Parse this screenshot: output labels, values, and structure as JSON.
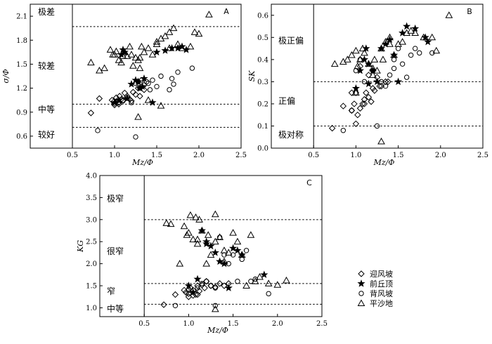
{
  "chart_data": [
    {
      "type": "scatter",
      "panel_label": "A",
      "xlabel": "Mz/Φ",
      "ylabel": "σ/Φ",
      "xlim": [
        0,
        2.5
      ],
      "ylim": [
        0.45,
        2.25
      ],
      "xticks": [
        "0.5",
        "1.0",
        "1.5",
        "2.0",
        "2.5"
      ],
      "yticks": [
        "0.6",
        "0.9",
        "1.2",
        "1.5",
        "1.8",
        "2.1"
      ],
      "vline_x": 0.5,
      "hlines": [
        1.97,
        1.0,
        0.71
      ],
      "zones": [
        "极差",
        "较差",
        "中等",
        "较好"
      ],
      "series": [
        {
          "name": "迎风坡",
          "marker": "diamond",
          "x": [
            0.72,
            0.82,
            0.97,
            0.99,
            1.0,
            1.02,
            1.04,
            1.05,
            1.06,
            1.08,
            1.1,
            1.12,
            1.15,
            1.18,
            1.2,
            1.22,
            1.25,
            1.28,
            1.3,
            1.32,
            1.35,
            1.0,
            1.05,
            1.15
          ],
          "y": [
            0.89,
            1.07,
            1.05,
            1.03,
            1.01,
            1.08,
            1.05,
            1.0,
            1.1,
            1.06,
            1.05,
            1.14,
            1.1,
            1.06,
            1.04,
            1.15,
            1.12,
            1.2,
            1.1,
            1.22,
            1.18,
            0.99,
            1.02,
            1.08
          ]
        },
        {
          "name": "前丘顶",
          "marker": "star",
          "x": [
            1.0,
            1.05,
            1.08,
            1.12,
            1.2,
            1.25,
            1.28,
            1.3,
            1.35,
            1.45,
            1.6,
            1.68,
            1.75,
            1.8,
            1.85,
            1.1,
            1.15,
            1.5,
            1.33
          ],
          "y": [
            1.02,
            1.05,
            1.62,
            1.65,
            1.25,
            1.3,
            1.28,
            1.2,
            1.32,
            1.02,
            1.67,
            1.7,
            1.7,
            1.72,
            1.68,
            1.68,
            1.07,
            1.65,
            1.22
          ]
        },
        {
          "name": "背风坡",
          "marker": "circle",
          "x": [
            0.8,
            1.1,
            1.2,
            1.25,
            1.28,
            1.3,
            1.32,
            1.35,
            1.38,
            1.4,
            1.42,
            1.45,
            1.5,
            1.55,
            1.65,
            1.7,
            1.75,
            1.92,
            1.68,
            1.25
          ],
          "y": [
            0.67,
            1.04,
            1.02,
            1.26,
            1.28,
            1.2,
            1.3,
            1.24,
            1.28,
            1.26,
            1.18,
            1.3,
            1.22,
            1.35,
            1.18,
            1.25,
            1.4,
            1.45,
            1.32,
            0.59
          ]
        },
        {
          "name": "平沙地",
          "marker": "triangle",
          "x": [
            0.72,
            0.82,
            0.88,
            0.95,
            0.98,
            1.0,
            1.02,
            1.05,
            1.08,
            1.1,
            1.12,
            1.15,
            1.18,
            1.2,
            1.22,
            1.25,
            1.28,
            1.3,
            1.32,
            1.35,
            1.4,
            1.45,
            1.5,
            1.55,
            1.6,
            1.65,
            1.7,
            1.75,
            1.8,
            1.9,
            1.95,
            2.0,
            2.12,
            1.3,
            1.4,
            1.55,
            1.28,
            1.5,
            1.65
          ],
          "y": [
            1.52,
            1.42,
            1.45,
            1.68,
            1.62,
            1.62,
            1.66,
            1.55,
            1.52,
            1.6,
            1.65,
            1.6,
            1.72,
            1.62,
            1.48,
            1.58,
            1.55,
            1.45,
            1.72,
            1.65,
            1.7,
            1.62,
            1.75,
            1.82,
            1.85,
            1.9,
            1.95,
            1.75,
            1.7,
            1.72,
            1.9,
            1.88,
            2.12,
            1.58,
            1.05,
            0.98,
            0.84,
            1.78,
            1.7
          ]
        }
      ]
    },
    {
      "type": "scatter",
      "panel_label": "B",
      "xlabel": "Mz/Φ",
      "ylabel": "SK",
      "xlim": [
        0,
        2.5
      ],
      "ylim": [
        0,
        0.65
      ],
      "xticks": [
        "0.5",
        "1.0",
        "1.5",
        "2.0",
        "2.5"
      ],
      "yticks": [
        "0.0",
        "0.1",
        "0.2",
        "0.3",
        "0.4",
        "0.5",
        "0.6"
      ],
      "vline_x": 0.5,
      "hlines": [
        0.3,
        0.1
      ],
      "zones": [
        "极正偏",
        "正偏",
        "极对称"
      ],
      "series": [
        {
          "name": "迎风坡",
          "marker": "diamond",
          "x": [
            0.72,
            0.85,
            0.95,
            0.98,
            1.0,
            1.02,
            1.05,
            1.08,
            1.1,
            1.12,
            1.15,
            1.18,
            1.2,
            1.22,
            1.25,
            1.28,
            1.3,
            1.35,
            1.38,
            1.0,
            1.05,
            1.1,
            1.15,
            0.95
          ],
          "y": [
            0.09,
            0.19,
            0.17,
            0.2,
            0.11,
            0.15,
            0.18,
            0.2,
            0.22,
            0.25,
            0.23,
            0.21,
            0.27,
            0.26,
            0.32,
            0.28,
            0.28,
            0.3,
            0.3,
            0.25,
            0.37,
            0.2,
            0.33,
            0.25
          ]
        },
        {
          "name": "前丘顶",
          "marker": "star",
          "x": [
            1.0,
            1.05,
            1.1,
            1.12,
            1.15,
            1.2,
            1.3,
            1.35,
            1.4,
            1.45,
            1.5,
            1.6,
            1.7,
            1.82,
            1.85,
            1.25,
            1.55,
            1.15
          ],
          "y": [
            0.27,
            0.35,
            0.4,
            0.45,
            0.38,
            0.35,
            0.45,
            0.47,
            0.49,
            0.42,
            0.3,
            0.55,
            0.54,
            0.5,
            0.48,
            0.3,
            0.52,
            0.29
          ]
        },
        {
          "name": "背风坡",
          "marker": "circle",
          "x": [
            0.85,
            0.95,
            1.0,
            1.05,
            1.1,
            1.2,
            1.25,
            1.3,
            1.35,
            1.4,
            1.45,
            1.5,
            1.55,
            1.6,
            1.65,
            1.7,
            1.75,
            1.9,
            1.45
          ],
          "y": [
            0.08,
            0.17,
            0.35,
            0.4,
            0.3,
            0.35,
            0.1,
            0.3,
            0.28,
            0.33,
            0.4,
            0.45,
            0.38,
            0.32,
            0.42,
            0.45,
            0.43,
            0.43,
            0.36
          ]
        },
        {
          "name": "平沙地",
          "marker": "triangle",
          "x": [
            0.75,
            0.85,
            0.9,
            0.95,
            1.0,
            1.02,
            1.05,
            1.08,
            1.1,
            1.15,
            1.2,
            1.22,
            1.25,
            1.3,
            1.35,
            1.4,
            1.45,
            1.5,
            1.55,
            1.6,
            1.65,
            1.7,
            1.8,
            1.9,
            1.95,
            2.1,
            1.3,
            1.0,
            1.4,
            1.2,
            1.32
          ],
          "y": [
            0.38,
            0.39,
            0.4,
            0.42,
            0.44,
            0.37,
            0.4,
            0.45,
            0.43,
            0.38,
            0.36,
            0.4,
            0.35,
            0.45,
            0.48,
            0.5,
            0.42,
            0.47,
            0.48,
            0.52,
            0.53,
            0.52,
            0.5,
            0.5,
            0.44,
            0.6,
            0.03,
            0.25,
            0.47,
            0.33,
            0.4
          ]
        }
      ]
    },
    {
      "type": "scatter",
      "panel_label": "C",
      "xlabel": "Mz/Φ",
      "ylabel": "KG",
      "xlim": [
        0,
        2.5
      ],
      "ylim": [
        0.8,
        4.0
      ],
      "xticks": [
        "0.5",
        "1.0",
        "1.5",
        "2.0",
        "2.5"
      ],
      "yticks": [
        "1.0",
        "1.5",
        "2.0",
        "2.5",
        "3.0",
        "3.5",
        "4.0"
      ],
      "vline_x": 0.5,
      "hlines": [
        3.0,
        1.55,
        1.08
      ],
      "zones": [
        "极窄",
        "很窄",
        "窄",
        "中等"
      ],
      "series": [
        {
          "name": "迎风坡",
          "marker": "diamond",
          "x": [
            0.72,
            0.85,
            0.95,
            0.97,
            1.0,
            1.02,
            1.05,
            1.08,
            1.1,
            1.12,
            1.15,
            1.18,
            1.2,
            1.25,
            1.3,
            1.35,
            1.4,
            1.45,
            1.0,
            1.05,
            1.1
          ],
          "y": [
            1.07,
            1.3,
            1.4,
            1.35,
            1.32,
            1.45,
            1.4,
            1.3,
            1.5,
            1.38,
            1.52,
            1.45,
            1.6,
            1.5,
            1.47,
            1.55,
            1.5,
            1.55,
            1.25,
            1.28,
            1.3
          ]
        },
        {
          "name": "前丘顶",
          "marker": "star",
          "x": [
            1.1,
            1.15,
            1.2,
            1.25,
            1.3,
            1.35,
            1.4,
            1.45,
            1.5,
            1.55,
            1.6,
            1.85,
            1.0,
            1.05,
            1.2
          ],
          "y": [
            1.65,
            2.75,
            2.5,
            2.4,
            2.25,
            2.05,
            2.0,
            1.45,
            2.35,
            2.3,
            2.2,
            1.75,
            1.5,
            1.35,
            2.45
          ]
        },
        {
          "name": "背风坡",
          "marker": "circle",
          "x": [
            0.85,
            1.0,
            1.1,
            1.15,
            1.2,
            1.25,
            1.3,
            1.35,
            1.4,
            1.45,
            1.5,
            1.55,
            1.6,
            1.65,
            1.7,
            1.75,
            1.9,
            1.3
          ],
          "y": [
            1.05,
            1.4,
            1.45,
            1.55,
            1.6,
            1.5,
            1.45,
            2.6,
            2.2,
            2.0,
            2.2,
            1.6,
            2.1,
            2.3,
            1.6,
            1.65,
            1.32,
            1.05
          ]
        },
        {
          "name": "平沙地",
          "marker": "triangle",
          "x": [
            0.75,
            0.8,
            0.9,
            0.95,
            1.0,
            1.02,
            1.05,
            1.08,
            1.1,
            1.12,
            1.15,
            1.2,
            1.22,
            1.25,
            1.3,
            1.35,
            1.4,
            1.45,
            1.5,
            1.55,
            1.6,
            1.65,
            1.7,
            1.75,
            1.8,
            1.9,
            2.0,
            2.1,
            1.3,
            1.1,
            1.4,
            0.98,
            1.3
          ],
          "y": [
            2.92,
            2.9,
            2.0,
            2.85,
            2.7,
            3.1,
            2.55,
            3.05,
            2.45,
            3.0,
            2.75,
            2.0,
            2.65,
            2.2,
            2.5,
            2.6,
            2.3,
            2.25,
            2.7,
            2.5,
            2.2,
            1.5,
            2.65,
            1.6,
            1.7,
            1.55,
            1.52,
            1.62,
            3.12,
            2.55,
            2.05,
            2.65,
            0.97
          ]
        }
      ]
    }
  ],
  "legend": [
    {
      "label": "迎风坡",
      "marker": "diamond"
    },
    {
      "label": "前丘顶",
      "marker": "star"
    },
    {
      "label": "背风坡",
      "marker": "circle"
    },
    {
      "label": "平沙地",
      "marker": "triangle"
    }
  ]
}
